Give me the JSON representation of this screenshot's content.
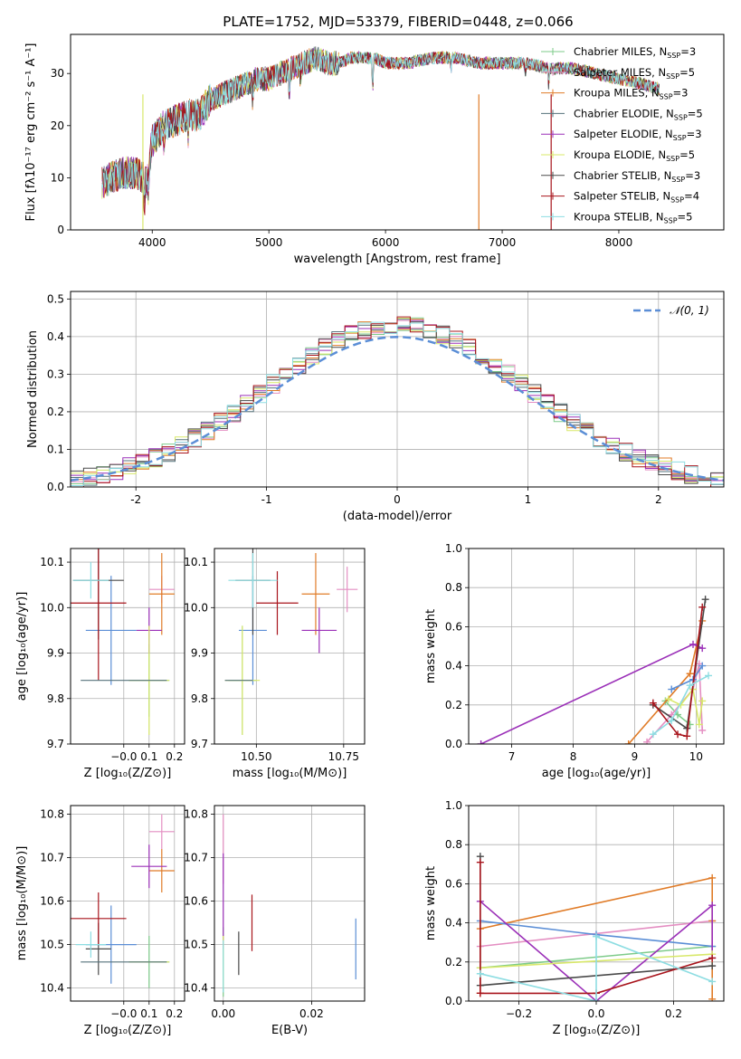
{
  "figure_title": "PLATE=1752, MJD=53379, FIBERID=0448, z=0.066",
  "colors": [
    "#7ecb8a",
    "#e48ec2",
    "#e07b27",
    "#56737c",
    "#9b30b8",
    "#d8e86a",
    "#4a4a4a",
    "#a8141c",
    "#8ddde2"
  ],
  "chart_data": [
    {
      "id": "spectrum",
      "type": "line",
      "title": "PLATE=1752, MJD=53379, FIBERID=0448, z=0.066",
      "xlabel": "wavelength [Angstrom, rest frame]",
      "ylabel": "Flux [fλ10⁻¹⁷ erg cm⁻² s⁻¹ A⁻¹]",
      "xlim": [
        3300,
        8900
      ],
      "ylim": [
        0,
        37.5
      ],
      "xticks": [
        4000,
        5000,
        6000,
        7000,
        8000
      ],
      "yticks": [
        0,
        10,
        20,
        30
      ],
      "grid": false,
      "legend_position": "top-right",
      "continuum": {
        "x": [
          3570,
          3650,
          3750,
          3850,
          3920,
          3950,
          4000,
          4100,
          4200,
          4300,
          4400,
          4500,
          4600,
          4700,
          4800,
          4900,
          5000,
          5100,
          5200,
          5300,
          5400,
          5500,
          5600,
          5700,
          5800,
          5900,
          6000,
          6200,
          6400,
          6600,
          6800,
          7000,
          7200,
          7400,
          7600,
          7800,
          8000,
          8200,
          8350
        ],
        "y": [
          9,
          10,
          11,
          11,
          10,
          9,
          17,
          20,
          21,
          22,
          22,
          25,
          26,
          27,
          28,
          29,
          29,
          30,
          31,
          32,
          33,
          32,
          32,
          33,
          33,
          33,
          32,
          32,
          33,
          33,
          32,
          32,
          32,
          31,
          31,
          30,
          29,
          28,
          27
        ]
      },
      "series": [
        {
          "name": "Chabrier MILES, N_SSP=3",
          "label": "Chabrier MILES, N",
          "sub": "SSP",
          "tail": "=3",
          "color": "#7ecb8a"
        },
        {
          "name": "Salpeter MILES, N_SSP=5",
          "label": "Salpeter MILES, N",
          "sub": "SSP",
          "tail": "=5",
          "color": "#e48ec2"
        },
        {
          "name": "Kroupa MILES, N_SSP=3",
          "label": "Kroupa MILES, N",
          "sub": "SSP",
          "tail": "=3",
          "color": "#e07b27"
        },
        {
          "name": "Chabrier ELODIE, N_SSP=5",
          "label": "Chabrier ELODIE, N",
          "sub": "SSP",
          "tail": "=5",
          "color": "#56737c"
        },
        {
          "name": "Salpeter ELODIE, N_SSP=3",
          "label": "Salpeter ELODIE, N",
          "sub": "SSP",
          "tail": "=3",
          "color": "#9b30b8"
        },
        {
          "name": "Kroupa ELODIE, N_SSP=5",
          "label": "Kroupa ELODIE, N",
          "sub": "SSP",
          "tail": "=5",
          "color": "#d8e86a"
        },
        {
          "name": "Chabrier STELIB, N_SSP=3",
          "label": "Chabrier STELIB, N",
          "sub": "SSP",
          "tail": "=3",
          "color": "#4a4a4a"
        },
        {
          "name": "Salpeter STELIB, N_SSP=4",
          "label": "Salpeter STELIB, N",
          "sub": "SSP",
          "tail": "=4",
          "color": "#a8141c"
        },
        {
          "name": "Kroupa STELIB, N_SSP=5",
          "label": "Kroupa STELIB, N",
          "sub": "SSP",
          "tail": "=5",
          "color": "#8ddde2"
        }
      ],
      "dropouts": [
        {
          "x": 3920,
          "color": "#d8e86a"
        },
        {
          "x": 6800,
          "color": "#e07b27"
        },
        {
          "x": 7420,
          "color": "#a8141c"
        }
      ]
    },
    {
      "id": "residuals",
      "type": "histogram",
      "xlabel": "(data-model)/error",
      "ylabel": "Normed distribution",
      "xlim": [
        -2.5,
        2.5
      ],
      "ylim": [
        0,
        0.52
      ],
      "xticks": [
        -2,
        -1,
        0,
        1,
        2
      ],
      "yticks": [
        0.0,
        0.1,
        0.2,
        0.3,
        0.4,
        0.5
      ],
      "grid": true,
      "legend_position": "top-right",
      "reference_curve": {
        "name": "N(0,1)",
        "label": "𝒩(0, 1)",
        "color": "#5b8ed6",
        "mu": 0,
        "sigma": 1
      },
      "bin_width": 0.1
    },
    {
      "id": "age-vs-Z",
      "type": "errorbar",
      "xlabel": "Z [log₁₀(Z/Z⊙)]",
      "ylabel": "age  [log₁₀(age/yr)]",
      "xlim": [
        -0.21,
        0.24
      ],
      "ylim": [
        9.7,
        10.13
      ],
      "xticks": [
        -0.0,
        0.1,
        0.2
      ],
      "xticklabels": [
        "−0.0",
        "0.1",
        "0.2"
      ],
      "yticks": [
        9.7,
        9.8,
        9.9,
        10.0,
        10.1
      ],
      "grid": true,
      "points": [
        {
          "x": 0.1,
          "xerr": 0.08,
          "y": 9.84,
          "yerr": 0.08,
          "color": "#7ecb8a"
        },
        {
          "x": 0.15,
          "xerr": 0.05,
          "y": 10.04,
          "yerr": 0.03,
          "color": "#e48ec2"
        },
        {
          "x": 0.15,
          "xerr": 0.05,
          "y": 10.03,
          "yerr": 0.09,
          "color": "#e07b27"
        },
        {
          "x": -0.05,
          "xerr": 0.1,
          "y": 9.95,
          "yerr": 0.12,
          "color": "#5b8ed6"
        },
        {
          "x": 0.1,
          "xerr": 0.05,
          "y": 9.95,
          "yerr": 0.05,
          "color": "#9b30b8"
        },
        {
          "x": 0.1,
          "xerr": 0.08,
          "y": 9.84,
          "yerr": 0.12,
          "color": "#d8e86a"
        },
        {
          "x": -0.1,
          "xerr": 0.1,
          "y": 10.06,
          "yerr": 0.13,
          "color": "#4a4a4a"
        },
        {
          "x": -0.1,
          "xerr": 0.11,
          "y": 10.01,
          "yerr": 0.17,
          "color": "#a8141c"
        },
        {
          "x": -0.13,
          "xerr": 0.07,
          "y": 10.06,
          "yerr": 0.04,
          "color": "#8ddde2"
        },
        {
          "x": 0.0,
          "xerr": 0.17,
          "y": 9.84,
          "yerr": 0.0,
          "color": "#56737c"
        }
      ]
    },
    {
      "id": "age-vs-mass",
      "type": "errorbar",
      "xlabel": "mass [log₁₀(M/M⊙)]",
      "ylabel": "",
      "xlim": [
        10.38,
        10.81
      ],
      "ylim": [
        9.7,
        10.13
      ],
      "xticks": [
        10.5,
        10.75
      ],
      "xticklabels": [
        "10.50",
        "10.75"
      ],
      "yticks": [
        9.7,
        9.8,
        9.9,
        10.0,
        10.1
      ],
      "grid": true,
      "points": [
        {
          "x": 10.46,
          "xerr": 0.04,
          "y": 9.84,
          "yerr": 0.12,
          "color": "#7ecb8a"
        },
        {
          "x": 10.76,
          "xerr": 0.03,
          "y": 10.04,
          "yerr": 0.05,
          "color": "#e48ec2"
        },
        {
          "x": 10.67,
          "xerr": 0.04,
          "y": 10.03,
          "yerr": 0.09,
          "color": "#e07b27"
        },
        {
          "x": 10.49,
          "xerr": 0.04,
          "y": 9.95,
          "yerr": 0.12,
          "color": "#5b8ed6"
        },
        {
          "x": 10.68,
          "xerr": 0.05,
          "y": 9.95,
          "yerr": 0.05,
          "color": "#9b30b8"
        },
        {
          "x": 10.46,
          "xerr": 0.05,
          "y": 9.84,
          "yerr": 0.12,
          "color": "#d8e86a"
        },
        {
          "x": 10.49,
          "xerr": 0.05,
          "y": 10.06,
          "yerr": 0.12,
          "color": "#4a4a4a"
        },
        {
          "x": 10.56,
          "xerr": 0.06,
          "y": 10.01,
          "yerr": 0.07,
          "color": "#a8141c"
        },
        {
          "x": 10.49,
          "xerr": 0.07,
          "y": 10.06,
          "yerr": 0.06,
          "color": "#8ddde2"
        },
        {
          "x": 10.45,
          "xerr": 0.04,
          "y": 9.84,
          "yerr": 0.0,
          "color": "#56737c"
        }
      ]
    },
    {
      "id": "weight-vs-age",
      "type": "line",
      "xlabel": "age  [log₁₀(age/yr)]",
      "ylabel": "mass weight",
      "xlim": [
        6.3,
        10.45
      ],
      "ylim": [
        0,
        1.0
      ],
      "xticks": [
        7,
        8,
        9,
        10
      ],
      "yticks": [
        0.0,
        0.2,
        0.4,
        0.6,
        0.8,
        1.0
      ],
      "grid": true,
      "series": [
        {
          "color": "#7ecb8a",
          "x": [
            9.5,
            9.7,
            9.9
          ],
          "y": [
            0.22,
            0.15,
            0.1
          ]
        },
        {
          "color": "#e48ec2",
          "x": [
            9.2,
            9.6,
            9.95,
            10.05,
            10.1
          ],
          "y": [
            0.01,
            0.15,
            0.28,
            0.41,
            0.07
          ]
        },
        {
          "color": "#e07b27",
          "x": [
            8.9,
            9.9,
            10.1
          ],
          "y": [
            0.0,
            0.36,
            0.63
          ]
        },
        {
          "color": "#5b8ed6",
          "x": [
            9.6,
            9.95,
            10.1
          ],
          "y": [
            0.28,
            0.33,
            0.4
          ]
        },
        {
          "color": "#9b30b8",
          "x": [
            6.5,
            9.95,
            10.1
          ],
          "y": [
            0.0,
            0.51,
            0.49
          ]
        },
        {
          "color": "#d8e86a",
          "x": [
            9.55,
            9.75,
            9.95,
            10.05,
            10.1
          ],
          "y": [
            0.23,
            0.2,
            0.28,
            0.1,
            0.22
          ]
        },
        {
          "color": "#4a4a4a",
          "x": [
            9.3,
            9.85,
            10.15
          ],
          "y": [
            0.2,
            0.08,
            0.74
          ]
        },
        {
          "color": "#a8141c",
          "x": [
            9.3,
            9.7,
            9.85,
            10.1
          ],
          "y": [
            0.21,
            0.05,
            0.04,
            0.7
          ]
        },
        {
          "color": "#8ddde2",
          "x": [
            9.3,
            9.6,
            9.9,
            10.2
          ],
          "y": [
            0.05,
            0.12,
            0.3,
            0.35
          ]
        }
      ]
    },
    {
      "id": "mass-vs-Z",
      "type": "errorbar",
      "xlabel": "Z [log₁₀(Z/Z⊙)]",
      "ylabel": "mass [log₁₀(M/M⊙)]",
      "xlim": [
        -0.21,
        0.24
      ],
      "ylim": [
        10.37,
        10.82
      ],
      "xticks": [
        -0.0,
        0.1,
        0.2
      ],
      "xticklabels": [
        "−0.0",
        "0.1",
        "0.2"
      ],
      "yticks": [
        10.4,
        10.5,
        10.6,
        10.7,
        10.8
      ],
      "grid": true,
      "points": [
        {
          "x": 0.1,
          "xerr": 0.08,
          "y": 10.46,
          "yerr": 0.06,
          "color": "#7ecb8a"
        },
        {
          "x": 0.15,
          "xerr": 0.05,
          "y": 10.76,
          "yerr": 0.04,
          "color": "#e48ec2"
        },
        {
          "x": 0.15,
          "xerr": 0.05,
          "y": 10.67,
          "yerr": 0.05,
          "color": "#e07b27"
        },
        {
          "x": -0.05,
          "xerr": 0.1,
          "y": 10.5,
          "yerr": 0.09,
          "color": "#5b8ed6"
        },
        {
          "x": 0.1,
          "xerr": 0.07,
          "y": 10.68,
          "yerr": 0.05,
          "color": "#9b30b8"
        },
        {
          "x": 0.1,
          "xerr": 0.08,
          "y": 10.46,
          "yerr": 0.0,
          "color": "#d8e86a"
        },
        {
          "x": -0.1,
          "xerr": 0.05,
          "y": 10.49,
          "yerr": 0.06,
          "color": "#4a4a4a"
        },
        {
          "x": -0.1,
          "xerr": 0.11,
          "y": 10.56,
          "yerr": 0.06,
          "color": "#a8141c"
        },
        {
          "x": -0.13,
          "xerr": 0.06,
          "y": 10.5,
          "yerr": 0.03,
          "color": "#8ddde2"
        },
        {
          "x": 0.0,
          "xerr": 0.17,
          "y": 10.46,
          "yerr": 0.0,
          "color": "#56737c"
        }
      ]
    },
    {
      "id": "mass-vs-ebv",
      "type": "errorbar",
      "xlabel": "E(B-V)",
      "ylabel": "",
      "xlim": [
        -0.002,
        0.032
      ],
      "ylim": [
        10.37,
        10.82
      ],
      "xticks": [
        0.0,
        0.02
      ],
      "xticklabels": [
        "0.00",
        "0.02"
      ],
      "yticks": [
        10.4,
        10.5,
        10.6,
        10.7,
        10.8
      ],
      "grid": true,
      "points": [
        {
          "x": 0.0,
          "xerr": 0,
          "y": 10.46,
          "yerr": 0.08,
          "color": "#7ecb8a"
        },
        {
          "x": 0.0,
          "xerr": 0,
          "y": 10.72,
          "yerr": 0.08,
          "color": "#e48ec2"
        },
        {
          "x": 0.0,
          "xerr": 0,
          "y": 10.6,
          "yerr": 0.11,
          "color": "#9b30b8"
        },
        {
          "x": 0.0,
          "xerr": 0,
          "y": 10.46,
          "yerr": 0.06,
          "color": "#d8e86a"
        },
        {
          "x": 0.0,
          "xerr": 0,
          "y": 10.45,
          "yerr": 0.06,
          "color": "#8ddde2"
        },
        {
          "x": 0.0035,
          "xerr": 0,
          "y": 10.48,
          "yerr": 0.05,
          "color": "#4a4a4a"
        },
        {
          "x": 0.0065,
          "xerr": 0,
          "y": 10.55,
          "yerr": 0.065,
          "color": "#a8141c"
        },
        {
          "x": 0.03,
          "xerr": 0,
          "y": 10.49,
          "yerr": 0.07,
          "color": "#5b8ed6"
        }
      ]
    },
    {
      "id": "weight-vs-Z",
      "type": "line",
      "xlabel": "Z [log₁₀(Z/Z⊙)]",
      "ylabel": "mass weight",
      "xlim": [
        -0.33,
        0.33
      ],
      "ylim": [
        0,
        1.0
      ],
      "xticks": [
        -0.2,
        0.0,
        0.2
      ],
      "xticklabels": [
        "−0.2",
        "0.0",
        "0.2"
      ],
      "yticks": [
        0.0,
        0.2,
        0.4,
        0.6,
        0.8,
        1.0
      ],
      "grid": true,
      "series": [
        {
          "color": "#7ecb8a",
          "x": [
            -0.3,
            0.3
          ],
          "y": [
            0.17,
            0.28
          ]
        },
        {
          "color": "#e48ec2",
          "x": [
            -0.3,
            0.3
          ],
          "y": [
            0.28,
            0.41
          ]
        },
        {
          "color": "#e07b27",
          "x": [
            -0.3,
            -0.3,
            0.3,
            0.3,
            0.3
          ],
          "y": [
            0.04,
            0.37,
            0.63,
            0.01,
            0.41
          ]
        },
        {
          "color": "#5b8ed6",
          "x": [
            -0.3,
            0.0,
            0.3
          ],
          "y": [
            0.41,
            0.34,
            0.28
          ]
        },
        {
          "color": "#9b30b8",
          "x": [
            -0.3,
            0.0,
            0.3,
            0.3
          ],
          "y": [
            0.51,
            0.0,
            0.49,
            0.22
          ]
        },
        {
          "color": "#d8e86a",
          "x": [
            -0.3,
            0.3
          ],
          "y": [
            0.17,
            0.24
          ]
        },
        {
          "color": "#4a4a4a",
          "x": [
            -0.3,
            -0.3,
            0.3
          ],
          "y": [
            0.74,
            0.08,
            0.18
          ]
        },
        {
          "color": "#a8141c",
          "x": [
            -0.3,
            -0.3,
            0.0,
            0.3
          ],
          "y": [
            0.71,
            0.04,
            0.04,
            0.22
          ]
        },
        {
          "color": "#8ddde2",
          "x": [
            -0.3,
            0.0,
            0.0,
            0.3
          ],
          "y": [
            0.14,
            0.0,
            0.33,
            0.1
          ]
        }
      ]
    }
  ]
}
